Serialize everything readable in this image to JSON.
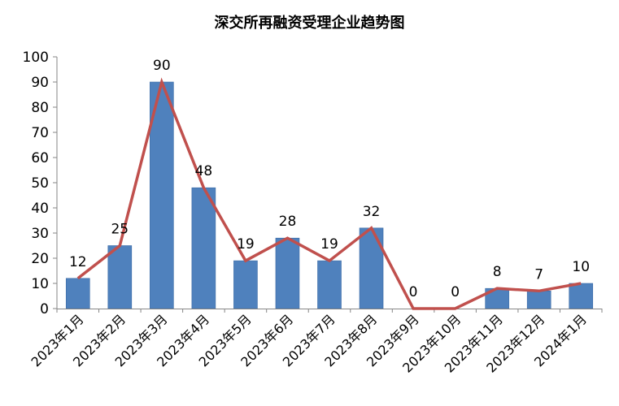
{
  "chart_data": {
    "type": "bar",
    "title": "深交所再融资受理企业趋势图",
    "categories": [
      "2023年1月",
      "2023年2月",
      "2023年3月",
      "2023年4月",
      "2023年5月",
      "2023年6月",
      "2023年7月",
      "2023年8月",
      "2023年9月",
      "2023年10月",
      "2023年11月",
      "2023年12月",
      "2024年1月"
    ],
    "values": [
      12,
      25,
      90,
      48,
      19,
      28,
      19,
      32,
      0,
      0,
      8,
      7,
      10
    ],
    "line_overlay": true,
    "ylim": [
      0,
      100
    ],
    "yticks": [
      0,
      10,
      20,
      30,
      40,
      50,
      60,
      70,
      80,
      90,
      100
    ],
    "grid": false,
    "legend": "none",
    "bar_color": "#4f81bd",
    "line_color": "#c0504d",
    "xlabel": "",
    "ylabel": ""
  }
}
